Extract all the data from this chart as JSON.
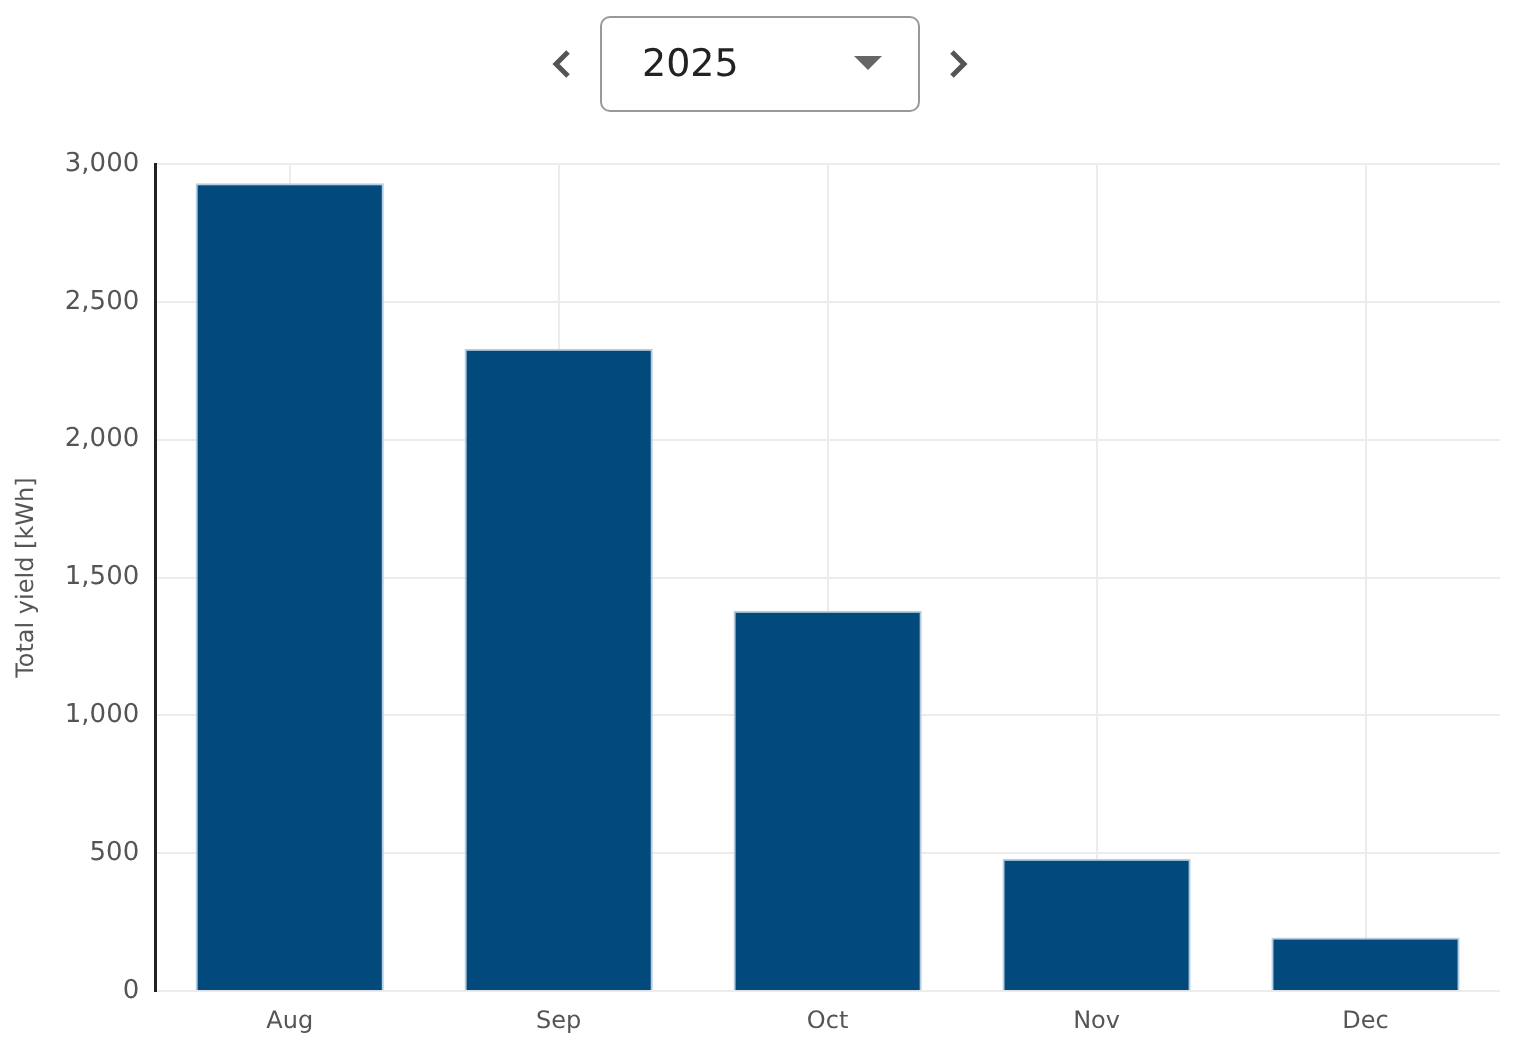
{
  "chart_data": {
    "type": "bar",
    "title": "2025",
    "ylabel": "Total yield [kWh]",
    "categories": [
      "Aug",
      "Sep",
      "Oct",
      "Nov",
      "Dec"
    ],
    "values": [
      2930,
      2330,
      1380,
      480,
      195
    ],
    "color": "#02497c",
    "ylim": [
      0,
      3000
    ],
    "yticks": [
      0,
      500,
      {
        "value": 1000,
        "label": "1,000"
      },
      {
        "value": 1500,
        "label": "1,500"
      },
      {
        "value": 2000,
        "label": "2,000"
      },
      {
        "value": 2500,
        "label": "2,500"
      },
      {
        "value": 3000,
        "label": "3,000"
      }
    ],
    "grid": true,
    "legend": false
  }
}
